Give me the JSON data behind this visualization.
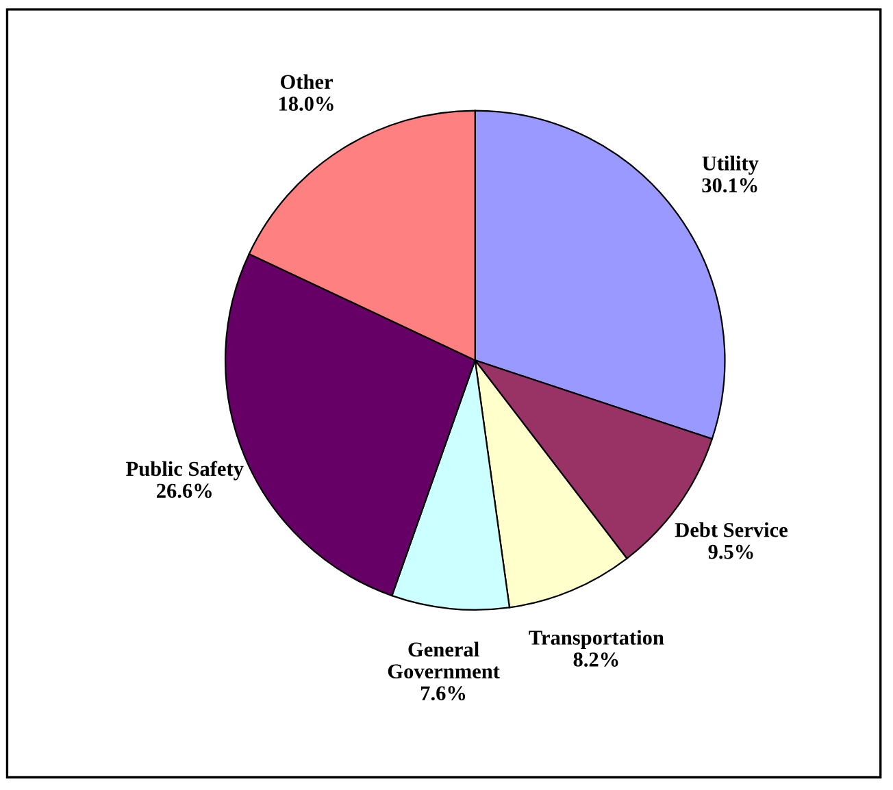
{
  "chart_data": {
    "type": "pie",
    "categories": [
      "Utility",
      "Debt Service",
      "Transportation",
      "General\nGovernment",
      "Public Safety",
      "Other"
    ],
    "values": [
      30.1,
      9.5,
      8.2,
      7.6,
      26.6,
      18.0
    ],
    "colors": [
      "#9999ff",
      "#993366",
      "#ffffcc",
      "#ccffff",
      "#660066",
      "#ff8080"
    ],
    "value_labels": [
      "30.1%",
      "9.5%",
      "8.2%",
      "7.6%",
      "26.6%",
      "18.0%"
    ],
    "legend": false
  }
}
